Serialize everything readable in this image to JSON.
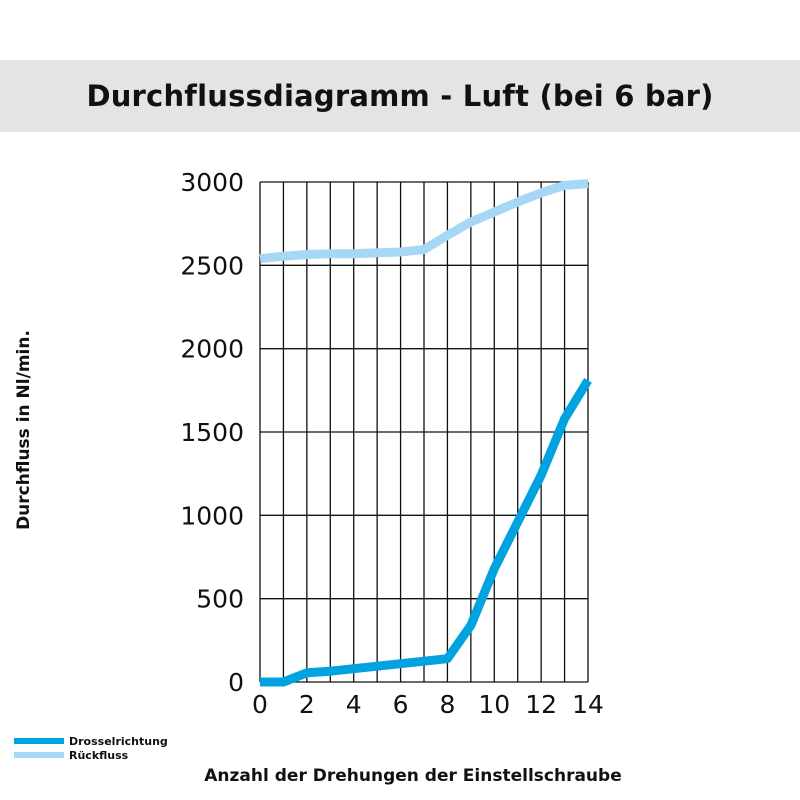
{
  "chart_data": {
    "type": "line",
    "title": "Durchflussdiagramm - Luft (bei 6 bar)",
    "xlabel": "Anzahl der Drehungen der Einstellschraube",
    "ylabel": "Durchfluss in Nl/min.",
    "xlim": [
      0,
      14
    ],
    "ylim": [
      0,
      3000
    ],
    "x_ticks": [
      0,
      2,
      4,
      6,
      8,
      10,
      12,
      14
    ],
    "y_ticks": [
      0,
      500,
      1000,
      1500,
      2000,
      2500,
      3000
    ],
    "grid": true,
    "legend_position": "bottom-left",
    "series": [
      {
        "name": "Drosselrichtung",
        "color": "#00a3e0",
        "x": [
          0,
          1,
          2,
          3,
          4,
          5,
          6,
          7,
          8,
          9,
          10,
          11,
          12,
          13,
          14
        ],
        "y": [
          0,
          0,
          55,
          65,
          80,
          95,
          110,
          125,
          140,
          340,
          680,
          960,
          1240,
          1580,
          1810
        ]
      },
      {
        "name": "Rückfluss",
        "color": "#a6d8f5",
        "x": [
          0,
          1,
          2,
          3,
          4,
          5,
          6,
          7,
          8,
          9,
          10,
          11,
          12,
          13,
          14
        ],
        "y": [
          2540,
          2555,
          2565,
          2570,
          2570,
          2575,
          2580,
          2595,
          2680,
          2760,
          2820,
          2880,
          2935,
          2980,
          2990
        ]
      }
    ]
  }
}
